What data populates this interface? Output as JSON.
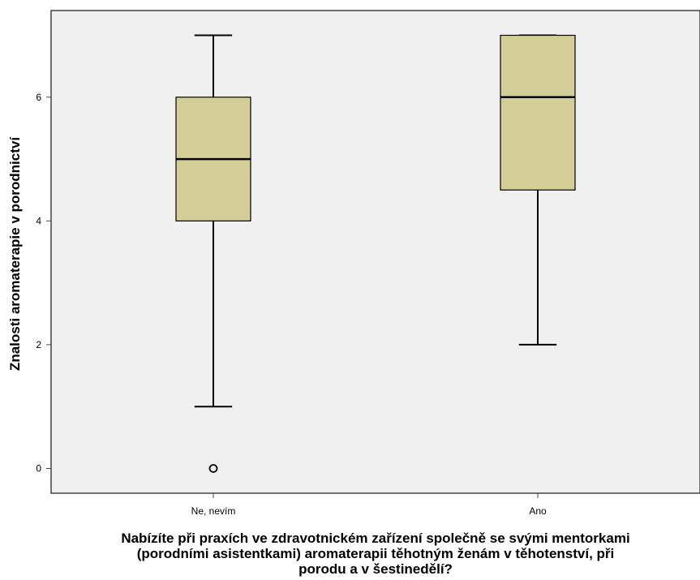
{
  "chart_data": {
    "type": "box",
    "xlabel_lines": [
      "Nabízíte při praxích ve zdravotnickém zařízení společně se svými mentorkami",
      "(porodními asistentkami) aromaterapii těhotným ženám v těhotenství, při",
      "porodu a v šestinedělí?"
    ],
    "ylabel": "Znalosti aromaterapie v porodnictví",
    "ylim": [
      -0.4,
      7.4
    ],
    "yticks": [
      0,
      2,
      4,
      6
    ],
    "categories": [
      "Ne, nevím",
      "Ano"
    ],
    "boxes": [
      {
        "category": "Ne, nevím",
        "min": 1,
        "q1": 4,
        "median": 5,
        "q3": 6,
        "max": 7,
        "outliers": [
          0
        ]
      },
      {
        "category": "Ano",
        "min": 2,
        "q1": 4.5,
        "median": 6,
        "q3": 7,
        "max": 7,
        "outliers": []
      }
    ],
    "grid": false,
    "colors": {
      "plot_background": "#f0f0f0",
      "box_fill": "#d3ce97",
      "line": "#000000"
    }
  }
}
